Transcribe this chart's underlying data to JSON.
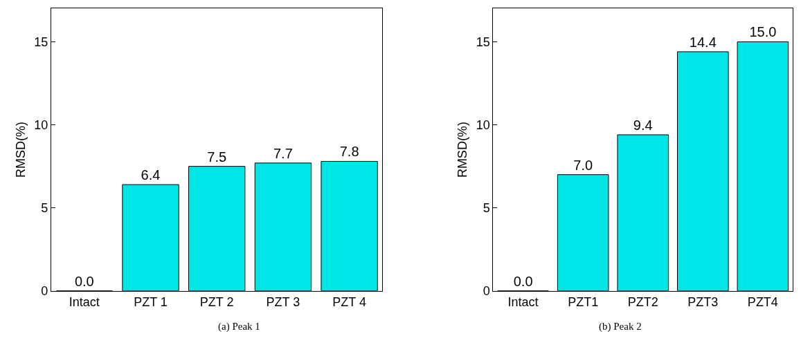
{
  "chart_data": [
    {
      "type": "bar",
      "ylabel": "RMSD(%)",
      "categories": [
        "Intact",
        "PZT 1",
        "PZT 2",
        "PZT 3",
        "PZT 4"
      ],
      "values": [
        0.0,
        6.4,
        7.5,
        7.7,
        7.8
      ],
      "value_labels": [
        "0.0",
        "6.4",
        "7.5",
        "7.7",
        "7.8"
      ],
      "color": "#00e5e5",
      "ylim": [
        0,
        17
      ],
      "yticks": [
        0,
        5,
        10,
        15
      ],
      "annotations": [
        "(a) Peak 1"
      ]
    },
    {
      "type": "bar",
      "ylabel": "RMSD(%)",
      "categories": [
        "Intact",
        "PZT1",
        "PZT2",
        "PZT3",
        "PZT4"
      ],
      "values": [
        0.0,
        7.0,
        9.4,
        14.4,
        15.0
      ],
      "value_labels": [
        "0.0",
        "7.0",
        "9.4",
        "14.4",
        "15.0"
      ],
      "color": "#00e5e5",
      "ylim": [
        0,
        17
      ],
      "yticks": [
        0,
        5,
        10,
        15
      ],
      "annotations": [
        "(b) Peak 2"
      ]
    }
  ]
}
